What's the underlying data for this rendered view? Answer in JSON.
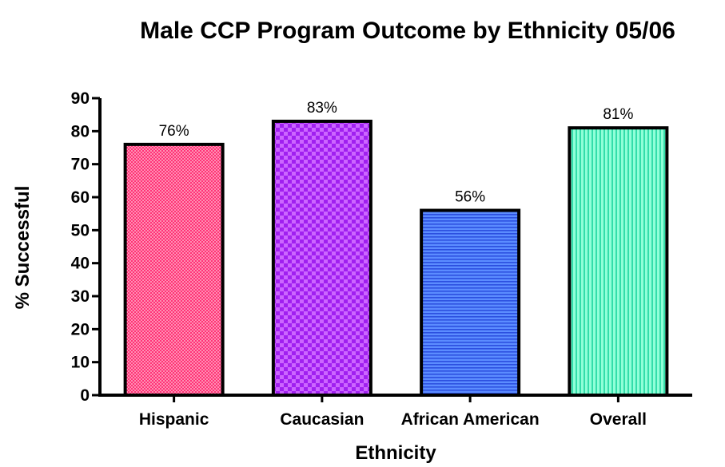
{
  "chart_data": {
    "type": "bar",
    "title": "Male CCP Program Outcome by Ethnicity 05/06",
    "xlabel": "Ethnicity",
    "ylabel": "% Successful",
    "ylim": [
      0,
      90
    ],
    "yticks": [
      0,
      10,
      20,
      30,
      40,
      50,
      60,
      70,
      80,
      90
    ],
    "grid": false,
    "categories": [
      "Hispanic",
      "Caucasian",
      "African American",
      "Overall"
    ],
    "values": [
      76,
      83,
      56,
      81
    ],
    "data_labels": [
      "76%",
      "83%",
      "56%",
      "81%"
    ],
    "colors": [
      "#ff3377",
      "#a020f0",
      "#4a7dff",
      "#66ffcc"
    ],
    "patterns": [
      "checker-fine",
      "checker",
      "horizontal-stripes",
      "vertical-stripes"
    ]
  }
}
